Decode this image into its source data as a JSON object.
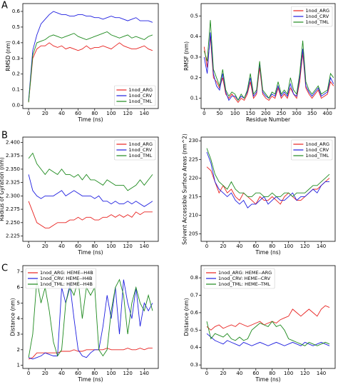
{
  "panel_labels": [
    "A",
    "B",
    "C"
  ],
  "chart_data": [
    {
      "type": "line",
      "xlabel": "Time (ns)",
      "ylabel": "RMSD (nm)",
      "x": [
        0,
        5,
        10,
        15,
        20,
        25,
        30,
        35,
        40,
        45,
        50,
        55,
        60,
        65,
        70,
        75,
        80,
        85,
        90,
        95,
        100,
        105,
        110,
        115,
        120,
        125,
        130,
        135,
        140,
        145,
        150
      ],
      "xlim": [
        -7,
        157
      ],
      "xticks": [
        0,
        20,
        40,
        60,
        80,
        100,
        120,
        140
      ],
      "ylim": [
        -0.02,
        0.65
      ],
      "yticks": [
        {
          "value": 0,
          "label": "0.0"
        },
        0.1,
        0.2,
        0.3,
        0.4,
        0.5,
        0.6
      ],
      "legend": "lower right",
      "series": [
        {
          "name": "1nod_ARG",
          "color": "#e8211f",
          "values": [
            0.02,
            0.3,
            0.36,
            0.38,
            0.38,
            0.4,
            0.38,
            0.37,
            0.38,
            0.36,
            0.37,
            0.36,
            0.35,
            0.36,
            0.38,
            0.36,
            0.37,
            0.37,
            0.38,
            0.37,
            0.36,
            0.38,
            0.4,
            0.38,
            0.37,
            0.36,
            0.36,
            0.37,
            0.38,
            0.36,
            0.35
          ]
        },
        {
          "name": "1nod_CRV",
          "color": "#1f1fe0",
          "values": [
            0.03,
            0.35,
            0.45,
            0.52,
            0.55,
            0.58,
            0.6,
            0.59,
            0.58,
            0.58,
            0.57,
            0.57,
            0.58,
            0.58,
            0.57,
            0.57,
            0.56,
            0.56,
            0.55,
            0.56,
            0.57,
            0.56,
            0.56,
            0.55,
            0.54,
            0.55,
            0.56,
            0.54,
            0.54,
            0.54,
            0.53
          ]
        },
        {
          "name": "1nod_TML",
          "color": "#1e8a1e",
          "values": [
            0.02,
            0.32,
            0.4,
            0.41,
            0.42,
            0.44,
            0.45,
            0.44,
            0.43,
            0.44,
            0.45,
            0.46,
            0.44,
            0.43,
            0.42,
            0.43,
            0.44,
            0.45,
            0.46,
            0.47,
            0.45,
            0.44,
            0.43,
            0.44,
            0.45,
            0.43,
            0.44,
            0.43,
            0.42,
            0.44,
            0.45
          ]
        }
      ]
    },
    {
      "type": "line",
      "xlabel": "Residue Number",
      "ylabel": "RMSF (nm)",
      "x": [
        0,
        10,
        20,
        30,
        40,
        50,
        60,
        70,
        80,
        90,
        100,
        110,
        120,
        130,
        140,
        150,
        160,
        170,
        180,
        190,
        200,
        210,
        220,
        230,
        240,
        250,
        260,
        270,
        280,
        290,
        300,
        310,
        320,
        330,
        340,
        350,
        360,
        370,
        380,
        390,
        400,
        410,
        420
      ],
      "xlim": [
        -10,
        425
      ],
      "xticks": [
        0,
        50,
        100,
        150,
        200,
        250,
        300,
        350,
        400
      ],
      "ylim": [
        0.05,
        0.56
      ],
      "yticks": [
        0.1,
        0.2,
        0.3,
        0.4,
        0.5
      ],
      "legend": "upper right",
      "series": [
        {
          "name": "1nod_ARG",
          "color": "#e8211f",
          "values": [
            0.35,
            0.25,
            0.4,
            0.2,
            0.18,
            0.15,
            0.2,
            0.12,
            0.1,
            0.12,
            0.1,
            0.08,
            0.1,
            0.09,
            0.12,
            0.18,
            0.1,
            0.12,
            0.25,
            0.12,
            0.1,
            0.09,
            0.11,
            0.1,
            0.15,
            0.1,
            0.12,
            0.1,
            0.15,
            0.12,
            0.1,
            0.18,
            0.32,
            0.15,
            0.12,
            0.1,
            0.12,
            0.14,
            0.1,
            0.11,
            0.12,
            0.18,
            0.16
          ]
        },
        {
          "name": "1nod_CRV",
          "color": "#1f1fe0",
          "values": [
            0.3,
            0.22,
            0.42,
            0.22,
            0.16,
            0.14,
            0.22,
            0.13,
            0.09,
            0.11,
            0.11,
            0.09,
            0.11,
            0.1,
            0.13,
            0.2,
            0.11,
            0.13,
            0.27,
            0.13,
            0.11,
            0.1,
            0.12,
            0.11,
            0.16,
            0.11,
            0.13,
            0.11,
            0.17,
            0.12,
            0.11,
            0.2,
            0.34,
            0.16,
            0.13,
            0.11,
            0.13,
            0.15,
            0.11,
            0.12,
            0.13,
            0.2,
            0.17
          ]
        },
        {
          "name": "1nod_TML",
          "color": "#1e8a1e",
          "values": [
            0.33,
            0.28,
            0.48,
            0.24,
            0.2,
            0.16,
            0.24,
            0.14,
            0.11,
            0.13,
            0.12,
            0.09,
            0.12,
            0.1,
            0.14,
            0.22,
            0.12,
            0.14,
            0.28,
            0.14,
            0.12,
            0.1,
            0.13,
            0.12,
            0.18,
            0.12,
            0.14,
            0.12,
            0.2,
            0.14,
            0.12,
            0.22,
            0.38,
            0.18,
            0.14,
            0.12,
            0.14,
            0.16,
            0.12,
            0.13,
            0.14,
            0.22,
            0.2
          ]
        }
      ]
    },
    {
      "type": "line",
      "xlabel": "Time (ns)",
      "ylabel": "Radius of Gyration (nm)",
      "x": [
        0,
        5,
        10,
        15,
        20,
        25,
        30,
        35,
        40,
        45,
        50,
        55,
        60,
        65,
        70,
        75,
        80,
        85,
        90,
        95,
        100,
        105,
        110,
        115,
        120,
        125,
        130,
        135,
        140,
        145,
        150
      ],
      "xlim": [
        -7,
        157
      ],
      "xticks": [
        0,
        20,
        40,
        60,
        80,
        100,
        120,
        140
      ],
      "ylim": [
        2.215,
        2.41
      ],
      "yticks": [
        2.225,
        {
          "value": 2.25,
          "label": "2.250"
        },
        2.275,
        {
          "value": 2.3,
          "label": "2.300"
        },
        2.325,
        {
          "value": 2.35,
          "label": "2.350"
        },
        2.375,
        {
          "value": 2.4,
          "label": "2.400"
        }
      ],
      "legend": "upper right",
      "series": [
        {
          "name": "1nod_ARG",
          "color": "#e8211f",
          "values": [
            2.29,
            2.27,
            2.25,
            2.245,
            2.24,
            2.24,
            2.245,
            2.25,
            2.25,
            2.25,
            2.255,
            2.255,
            2.26,
            2.255,
            2.26,
            2.26,
            2.255,
            2.255,
            2.26,
            2.26,
            2.265,
            2.26,
            2.265,
            2.26,
            2.265,
            2.26,
            2.27,
            2.265,
            2.27,
            2.27,
            2.27
          ]
        },
        {
          "name": "1nod_CRV",
          "color": "#1f1fe0",
          "values": [
            2.34,
            2.31,
            2.3,
            2.295,
            2.3,
            2.3,
            2.3,
            2.305,
            2.31,
            2.3,
            2.305,
            2.31,
            2.305,
            2.3,
            2.3,
            2.3,
            2.295,
            2.3,
            2.29,
            2.29,
            2.285,
            2.29,
            2.285,
            2.285,
            2.29,
            2.285,
            2.29,
            2.285,
            2.28,
            2.285,
            2.29
          ]
        },
        {
          "name": "1nod_TML",
          "color": "#1e8a1e",
          "values": [
            2.37,
            2.38,
            2.36,
            2.35,
            2.34,
            2.35,
            2.345,
            2.34,
            2.35,
            2.34,
            2.34,
            2.335,
            2.34,
            2.33,
            2.34,
            2.33,
            2.33,
            2.325,
            2.32,
            2.33,
            2.325,
            2.32,
            2.32,
            2.32,
            2.31,
            2.315,
            2.32,
            2.33,
            2.32,
            2.33,
            2.34
          ]
        }
      ]
    },
    {
      "type": "line",
      "xlabel": "Time (ns)",
      "ylabel": "Solvent Accessible Surface Areas (nm^2)",
      "x": [
        0,
        5,
        10,
        15,
        20,
        25,
        30,
        35,
        40,
        45,
        50,
        55,
        60,
        65,
        70,
        75,
        80,
        85,
        90,
        95,
        100,
        105,
        110,
        115,
        120,
        125,
        130,
        135,
        140,
        145,
        150
      ],
      "xlim": [
        -7,
        157
      ],
      "xticks": [
        0,
        20,
        40,
        60,
        80,
        100,
        120,
        140
      ],
      "ylim": [
        203,
        231
      ],
      "yticks": [
        205,
        210,
        215,
        220,
        225,
        230
      ],
      "legend": "upper right",
      "series": [
        {
          "name": "1nod_ARG",
          "color": "#e8211f",
          "values": [
            223,
            222,
            219,
            216,
            218,
            216,
            217,
            215,
            214,
            216,
            215,
            214,
            213,
            215,
            214,
            214,
            215,
            214,
            213,
            215,
            216,
            215,
            214,
            214,
            215,
            216,
            217,
            217,
            218,
            219,
            220
          ]
        },
        {
          "name": "1nod_CRV",
          "color": "#1f1fe0",
          "values": [
            227,
            224,
            219,
            217,
            216,
            215,
            216,
            214,
            213,
            214,
            212,
            213,
            213,
            214,
            215,
            213,
            214,
            215,
            214,
            214,
            215,
            216,
            214,
            215,
            215,
            216,
            217,
            216,
            218,
            219,
            219
          ]
        },
        {
          "name": "1nod_TML",
          "color": "#1e8a1e",
          "values": [
            228,
            225,
            221,
            219,
            218,
            217,
            219,
            217,
            216,
            216,
            215,
            215,
            216,
            216,
            215,
            215,
            216,
            215,
            215,
            216,
            216,
            215,
            216,
            216,
            216,
            217,
            218,
            218,
            219,
            220,
            221
          ]
        }
      ]
    },
    {
      "type": "line",
      "xlabel": "Time (ns)",
      "ylabel": "Distance (nm)",
      "x": [
        0,
        5,
        10,
        15,
        20,
        25,
        30,
        35,
        40,
        45,
        50,
        55,
        60,
        65,
        70,
        75,
        80,
        85,
        90,
        95,
        100,
        105,
        110,
        115,
        120,
        125,
        130,
        135,
        140,
        145,
        150
      ],
      "xlim": [
        -7,
        157
      ],
      "xticks": [
        0,
        20,
        40,
        60,
        80,
        100,
        120,
        140
      ],
      "ylim": [
        0.8,
        7.4
      ],
      "yticks": [
        1,
        2,
        3,
        4,
        5,
        6,
        7
      ],
      "legend": "upper left",
      "series": [
        {
          "name": "1nod_ARG: HEME--H4B",
          "color": "#e8211f",
          "values": [
            1.4,
            1.5,
            1.8,
            1.8,
            1.8,
            1.8,
            1.8,
            1.8,
            1.9,
            1.9,
            1.9,
            2.0,
            1.9,
            1.9,
            2.0,
            2.0,
            2.0,
            2.0,
            2.0,
            2.1,
            2.0,
            2.0,
            2.0,
            2.0,
            2.1,
            2.0,
            2.0,
            2.1,
            2.0,
            2.1,
            2.1
          ]
        },
        {
          "name": "1nod_CRV: HEME--H4B",
          "color": "#1f1fe0",
          "values": [
            1.5,
            1.4,
            1.5,
            1.6,
            1.8,
            1.7,
            1.6,
            1.6,
            6.0,
            5.0,
            6.2,
            4.0,
            2.0,
            1.6,
            1.5,
            1.8,
            2.0,
            2.0,
            3.5,
            5.5,
            4.0,
            6.0,
            3.0,
            6.5,
            5.0,
            4.0,
            6.0,
            3.5,
            5.0,
            4.5,
            5.0
          ]
        },
        {
          "name": "1nod_TML: HEME--H4B",
          "color": "#1e8a1e",
          "values": [
            1.5,
            3.0,
            6.5,
            5.0,
            6.0,
            4.5,
            2.5,
            1.6,
            2.0,
            5.0,
            6.0,
            5.5,
            6.5,
            4.0,
            6.0,
            5.5,
            6.0,
            2.0,
            1.6,
            2.0,
            4.5,
            6.0,
            6.5,
            5.5,
            3.0,
            5.0,
            6.0,
            5.0,
            4.5,
            5.5,
            4.5
          ]
        }
      ]
    },
    {
      "type": "line",
      "xlabel": "Time (ns)",
      "ylabel": "Distance (nm)",
      "x": [
        0,
        5,
        10,
        15,
        20,
        25,
        30,
        35,
        40,
        45,
        50,
        55,
        60,
        65,
        70,
        75,
        80,
        85,
        90,
        95,
        100,
        105,
        110,
        115,
        120,
        125,
        130,
        135,
        140,
        145,
        150
      ],
      "xlim": [
        -7,
        157
      ],
      "xticks": [
        0,
        20,
        40,
        60,
        80,
        100,
        120,
        140
      ],
      "ylim": [
        0.28,
        0.87
      ],
      "yticks": [
        0.3,
        0.4,
        0.5,
        0.6,
        0.7,
        0.8
      ],
      "legend": "upper left",
      "series": [
        {
          "name": "1nod_ARG: HEME--ARG",
          "color": "#e8211f",
          "values": [
            0.52,
            0.5,
            0.52,
            0.53,
            0.51,
            0.52,
            0.53,
            0.52,
            0.54,
            0.53,
            0.52,
            0.53,
            0.54,
            0.55,
            0.53,
            0.54,
            0.55,
            0.54,
            0.56,
            0.57,
            0.58,
            0.62,
            0.6,
            0.58,
            0.6,
            0.62,
            0.6,
            0.58,
            0.62,
            0.64,
            0.63
          ]
        },
        {
          "name": "1nod_CRV: HEME--CRV",
          "color": "#1f1fe0",
          "values": [
            0.48,
            0.46,
            0.44,
            0.43,
            0.42,
            0.44,
            0.43,
            0.42,
            0.41,
            0.43,
            0.42,
            0.41,
            0.42,
            0.43,
            0.42,
            0.41,
            0.42,
            0.43,
            0.42,
            0.41,
            0.42,
            0.43,
            0.42,
            0.41,
            0.43,
            0.42,
            0.41,
            0.42,
            0.43,
            0.42,
            0.41
          ]
        },
        {
          "name": "1nod_TML: HEME--TML",
          "color": "#1e8a1e",
          "values": [
            0.55,
            0.45,
            0.48,
            0.47,
            0.46,
            0.48,
            0.45,
            0.44,
            0.46,
            0.44,
            0.45,
            0.5,
            0.52,
            0.54,
            0.53,
            0.52,
            0.55,
            0.52,
            0.53,
            0.5,
            0.45,
            0.44,
            0.43,
            0.42,
            0.41,
            0.43,
            0.42,
            0.41,
            0.42,
            0.43,
            0.42
          ]
        }
      ]
    }
  ]
}
